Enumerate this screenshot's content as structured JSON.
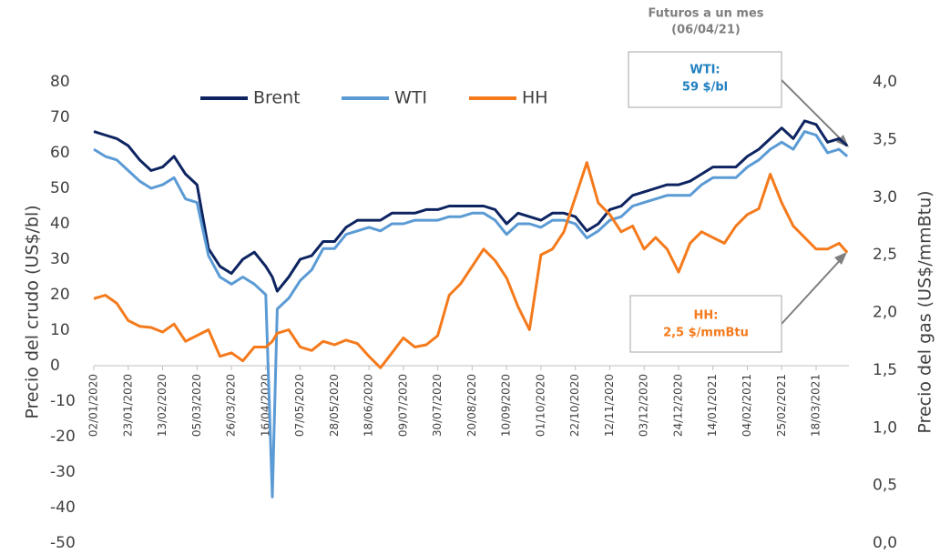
{
  "chart_data": {
    "type": "line",
    "x": [
      "02/01/2020",
      "09/01/2020",
      "16/01/2020",
      "23/01/2020",
      "30/01/2020",
      "06/02/2020",
      "13/02/2020",
      "20/02/2020",
      "27/02/2020",
      "05/03/2020",
      "12/03/2020",
      "19/03/2020",
      "26/03/2020",
      "02/04/2020",
      "09/04/2020",
      "16/04/2020",
      "20/04/2020",
      "23/04/2020",
      "30/04/2020",
      "07/05/2020",
      "14/05/2020",
      "21/05/2020",
      "28/05/2020",
      "04/06/2020",
      "11/06/2020",
      "18/06/2020",
      "25/06/2020",
      "02/07/2020",
      "09/07/2020",
      "16/07/2020",
      "23/07/2020",
      "30/07/2020",
      "06/08/2020",
      "13/08/2020",
      "20/08/2020",
      "27/08/2020",
      "03/09/2020",
      "10/09/2020",
      "17/09/2020",
      "24/09/2020",
      "01/10/2020",
      "08/10/2020",
      "15/10/2020",
      "22/10/2020",
      "29/10/2020",
      "05/11/2020",
      "12/11/2020",
      "19/11/2020",
      "26/11/2020",
      "03/12/2020",
      "10/12/2020",
      "17/12/2020",
      "24/12/2020",
      "31/12/2020",
      "07/01/2021",
      "14/01/2021",
      "21/01/2021",
      "28/01/2021",
      "04/02/2021",
      "11/02/2021",
      "18/02/2021",
      "25/02/2021",
      "04/03/2021",
      "11/03/2021",
      "18/03/2021",
      "25/03/2021",
      "01/04/2021",
      "06/04/2021"
    ],
    "series": [
      {
        "name": "Brent",
        "color": "#0d2461",
        "values": [
          66,
          65,
          64,
          62,
          58,
          55,
          56,
          59,
          54,
          51,
          33,
          28,
          26,
          30,
          32,
          28,
          25,
          21,
          25,
          30,
          31,
          35,
          35,
          39,
          41,
          41,
          41,
          43,
          43,
          43,
          44,
          44,
          45,
          45,
          45,
          45,
          44,
          40,
          43,
          42,
          41,
          43,
          43,
          42,
          38,
          40,
          44,
          45,
          48,
          49,
          50,
          51,
          51,
          52,
          54,
          56,
          56,
          56,
          59,
          61,
          64,
          67,
          64,
          69,
          68,
          63,
          64,
          62
        ]
      },
      {
        "name": "WTI",
        "color": "#5b9bd5",
        "values": [
          61,
          59,
          58,
          55,
          52,
          50,
          51,
          53,
          47,
          46,
          31,
          25,
          23,
          25,
          23,
          20,
          -37,
          16,
          19,
          24,
          27,
          33,
          33,
          37,
          38,
          39,
          38,
          40,
          40,
          41,
          41,
          41,
          42,
          42,
          43,
          43,
          41,
          37,
          40,
          40,
          39,
          41,
          41,
          40,
          36,
          38,
          41,
          42,
          45,
          46,
          47,
          48,
          48,
          48,
          51,
          53,
          53,
          53,
          56,
          58,
          61,
          63,
          61,
          66,
          65,
          60,
          61,
          59
        ]
      },
      {
        "name": "HH",
        "color": "#f47a1c",
        "axis": "y2",
        "values": [
          2.12,
          2.15,
          2.08,
          1.93,
          1.88,
          1.87,
          1.83,
          1.9,
          1.75,
          1.8,
          1.85,
          1.62,
          1.65,
          1.58,
          1.7,
          1.7,
          1.75,
          1.82,
          1.85,
          1.7,
          1.67,
          1.75,
          1.72,
          1.76,
          1.73,
          1.62,
          1.52,
          1.65,
          1.78,
          1.7,
          1.72,
          1.8,
          2.15,
          2.25,
          2.4,
          2.55,
          2.45,
          2.3,
          2.05,
          1.85,
          2.5,
          2.55,
          2.7,
          3.0,
          3.3,
          2.95,
          2.85,
          2.7,
          2.75,
          2.55,
          2.65,
          2.55,
          2.35,
          2.6,
          2.7,
          2.65,
          2.6,
          2.75,
          2.85,
          2.9,
          3.2,
          2.95,
          2.75,
          2.65,
          2.55,
          2.55,
          2.6,
          2.52
        ]
      }
    ],
    "xlim": [
      "02/01/2020",
      "07/04/2021"
    ],
    "xticks": [
      "02/01/2020",
      "23/01/2020",
      "13/02/2020",
      "05/03/2020",
      "26/03/2020",
      "16/04/2020",
      "07/05/2020",
      "28/05/2020",
      "18/06/2020",
      "09/07/2020",
      "30/07/2020",
      "20/08/2020",
      "10/09/2020",
      "01/10/2020",
      "22/10/2020",
      "12/11/2020",
      "03/12/2020",
      "24/12/2020",
      "14/01/2021",
      "04/02/2021",
      "25/02/2021",
      "18/03/2021"
    ],
    "ylim": [
      -50,
      80
    ],
    "yticks": [
      -50,
      -40,
      -30,
      -20,
      -10,
      0,
      10,
      20,
      30,
      40,
      50,
      60,
      70,
      80
    ],
    "y2lim": [
      0,
      4
    ],
    "y2ticks": [
      {
        "value": 0,
        "label": "0,0"
      },
      {
        "value": 0.5,
        "label": "0,5"
      },
      {
        "value": 1,
        "label": "1,0"
      },
      {
        "value": 1.5,
        "label": "1,5"
      },
      {
        "value": 2,
        "label": "2,0"
      },
      {
        "value": 2.5,
        "label": "2,5"
      },
      {
        "value": 3,
        "label": "3,0"
      },
      {
        "value": 3.5,
        "label": "3,5"
      },
      {
        "value": 4,
        "label": "4,0"
      }
    ],
    "ylabel": "Precio del crudo (US$/bl)",
    "y2label": "Precio del gas (US$/mmBtu)",
    "legend": "top",
    "annotations": {
      "header": [
        "Futuros a un mes",
        "(06/04/21)"
      ],
      "wti": [
        "WTI:",
        "59 $/bl"
      ],
      "hh": [
        "HH:",
        "2,5 $/mmBtu"
      ]
    }
  }
}
